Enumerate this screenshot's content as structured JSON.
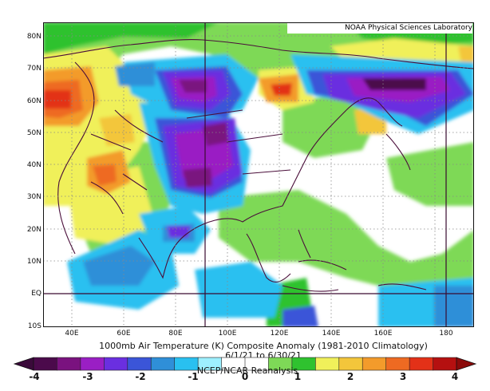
{
  "map": {
    "credit": "NOAA Physical Sciences Laboratory",
    "y_labels": [
      "80N",
      "70N",
      "60N",
      "50N",
      "40N",
      "30N",
      "20N",
      "10N",
      "EQ",
      "10S"
    ],
    "x_labels": [
      "40E",
      "60E",
      "80E",
      "100E",
      "120E",
      "140E",
      "160E",
      "180"
    ],
    "title_line1": "1000mb Air Temperature (K) Composite Anomaly (1981-2010 Climatology)",
    "title_line2": "6/1/21 to 6/30/21",
    "source": "NCEP/NCAR Reanalysis",
    "colorbar": {
      "labels": [
        "-4",
        "-3",
        "-2",
        "-1",
        "0",
        "1",
        "2",
        "3",
        "4"
      ],
      "colors": [
        "#4b0a4b",
        "#7a127f",
        "#9a1fc4",
        "#6a2fe0",
        "#3b55d8",
        "#2f8fd8",
        "#29c0f0",
        "#9ef0ff",
        "#ffffff",
        "#ffffff",
        "#7ed957",
        "#2fc22f",
        "#f0f05a",
        "#f3c63b",
        "#f39b2b",
        "#ee6a22",
        "#e33118",
        "#b51010"
      ]
    }
  }
}
